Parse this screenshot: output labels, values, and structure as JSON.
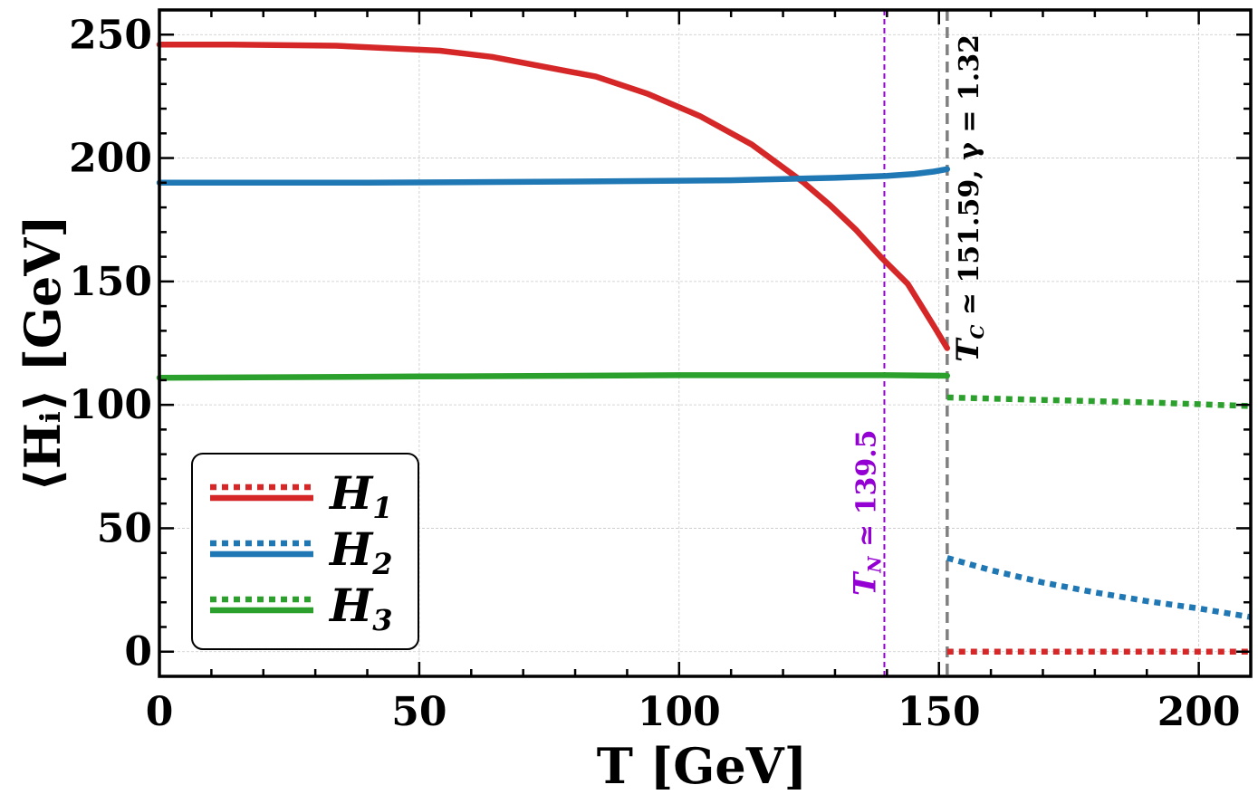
{
  "chart_data": {
    "type": "line",
    "xlabel": "T  [GeV]",
    "ylabel": "⟨Hᵢ⟩  [GeV]",
    "xlim": [
      0,
      210
    ],
    "ylim": [
      -10,
      260
    ],
    "x_ticks": [
      0,
      50,
      100,
      150,
      200
    ],
    "y_ticks": [
      0,
      50,
      100,
      150,
      200,
      250
    ],
    "x_minor_step": 10,
    "y_minor_step": 10,
    "grid": true,
    "legend_position": "lower-left",
    "legend": [
      {
        "label": "H",
        "subscript": "1",
        "color": "#d62728"
      },
      {
        "label": "H",
        "subscript": "2",
        "color": "#1f77b4"
      },
      {
        "label": "H",
        "subscript": "3",
        "color": "#2ca02c"
      }
    ],
    "series": [
      {
        "name": "H1 (broken)",
        "color": "#d62728",
        "style": "solid",
        "x": [
          0,
          14,
          34,
          54,
          64,
          84,
          94,
          104,
          114,
          124,
          129,
          134,
          139,
          144,
          149,
          151.59
        ],
        "y": [
          246,
          246,
          245.5,
          243.5,
          241,
          233,
          226,
          217,
          205.5,
          190,
          181,
          171,
          159.5,
          149,
          132,
          123
        ]
      },
      {
        "name": "H2 (broken)",
        "color": "#1f77b4",
        "style": "solid",
        "x": [
          0,
          40,
          80,
          110,
          130,
          140,
          145,
          149,
          151.59
        ],
        "y": [
          190,
          190,
          190.5,
          191,
          192,
          192.8,
          193.5,
          194.5,
          195.5
        ]
      },
      {
        "name": "H3 (broken)",
        "color": "#2ca02c",
        "style": "solid",
        "x": [
          0,
          50,
          100,
          140,
          151.59
        ],
        "y": [
          111,
          111.5,
          112,
          112,
          111.8
        ]
      },
      {
        "name": "H1 (symmetric)",
        "color": "#d62728",
        "style": "dotted",
        "x": [
          151.59,
          170,
          190,
          210
        ],
        "y": [
          0,
          0,
          0,
          0
        ]
      },
      {
        "name": "H2 (symmetric)",
        "color": "#1f77b4",
        "style": "dotted",
        "x": [
          151.59,
          160,
          170,
          180,
          190,
          200,
          210
        ],
        "y": [
          38,
          33,
          28,
          24,
          20.5,
          17.5,
          14
        ]
      },
      {
        "name": "H3 (symmetric)",
        "color": "#2ca02c",
        "style": "dotted",
        "x": [
          151.59,
          170,
          190,
          210
        ],
        "y": [
          103,
          102,
          101,
          99.5
        ]
      }
    ],
    "vlines": [
      {
        "x": 139.5,
        "color": "#9400d3",
        "style": "dashed",
        "label": "T_N ≃ 139.5"
      },
      {
        "x": 151.59,
        "color": "#808080",
        "style": "dashed",
        "label": "T_C ≃ 151.59, γ = 1.32"
      }
    ],
    "annotations": {
      "tn": {
        "text": "T",
        "sub": "N",
        "rest": " ≃ 139.5",
        "color": "#9400d3"
      },
      "tc": {
        "text": "T",
        "sub": "C",
        "rest": " ≃ 151.59, γ = 1.32",
        "color": "#000000"
      }
    }
  }
}
